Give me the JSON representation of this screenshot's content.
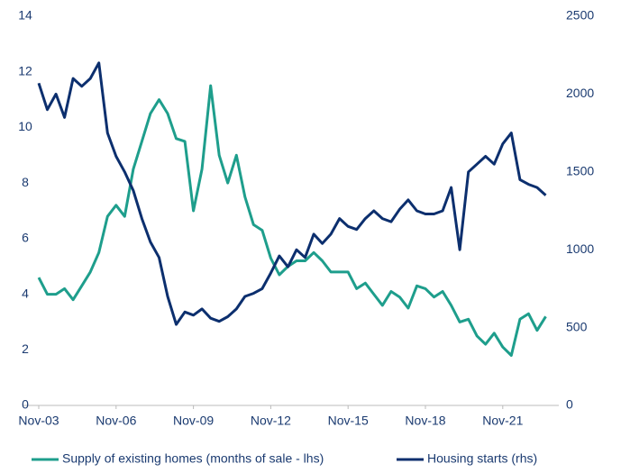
{
  "chart_data": {
    "type": "line",
    "categories": [
      "Nov-03",
      null,
      null,
      null,
      null,
      null,
      null,
      null,
      null,
      "Nov-06",
      null,
      null,
      null,
      null,
      null,
      null,
      null,
      null,
      "Nov-09",
      null,
      null,
      null,
      null,
      null,
      null,
      null,
      null,
      "Nov-12",
      null,
      null,
      null,
      null,
      null,
      null,
      null,
      null,
      "Nov-15",
      null,
      null,
      null,
      null,
      null,
      null,
      null,
      null,
      "Nov-18",
      null,
      null,
      null,
      null,
      null,
      null,
      null,
      null,
      "Nov-21",
      null,
      null,
      null,
      null,
      null
    ],
    "series": [
      {
        "name": "Supply of existing homes (months of sale - lhs)",
        "color": "#1e9e8c",
        "axis": "y",
        "values": [
          4.6,
          4.0,
          4.0,
          4.2,
          3.8,
          4.3,
          4.8,
          5.5,
          6.8,
          7.2,
          6.8,
          8.5,
          9.5,
          10.5,
          11.0,
          10.5,
          9.6,
          9.5,
          7.0,
          8.5,
          11.5,
          9.0,
          8.0,
          9.0,
          7.5,
          6.5,
          6.3,
          5.3,
          4.7,
          5.0,
          5.2,
          5.2,
          5.5,
          5.2,
          4.8,
          4.8,
          4.8,
          4.2,
          4.4,
          4.0,
          3.6,
          4.1,
          3.9,
          3.5,
          4.3,
          4.2,
          3.9,
          4.1,
          3.6,
          3.0,
          3.1,
          2.5,
          2.2,
          2.6,
          2.1,
          1.8,
          3.1,
          3.3,
          2.7,
          3.2
        ]
      },
      {
        "name": "Housing starts (rhs)",
        "color": "#0c2f6e",
        "axis": "y2",
        "values": [
          2070,
          1900,
          2000,
          1850,
          2100,
          2050,
          2100,
          2200,
          1750,
          1600,
          1500,
          1380,
          1200,
          1050,
          950,
          700,
          520,
          600,
          580,
          620,
          560,
          540,
          570,
          620,
          700,
          720,
          750,
          850,
          960,
          890,
          1000,
          950,
          1100,
          1040,
          1100,
          1200,
          1150,
          1130,
          1200,
          1250,
          1200,
          1180,
          1260,
          1320,
          1250,
          1230,
          1230,
          1250,
          1400,
          1000,
          1500,
          1550,
          1600,
          1550,
          1680,
          1750,
          1450,
          1420,
          1400,
          1350
        ]
      }
    ],
    "ylim": [
      0,
      14
    ],
    "yticks": [
      0,
      2,
      4,
      6,
      8,
      10,
      12,
      14
    ],
    "y2lim": [
      0,
      2500
    ],
    "y2ticks": [
      0,
      500,
      1000,
      1500,
      2000,
      2500
    ],
    "grid": false,
    "legend": "bottom"
  }
}
